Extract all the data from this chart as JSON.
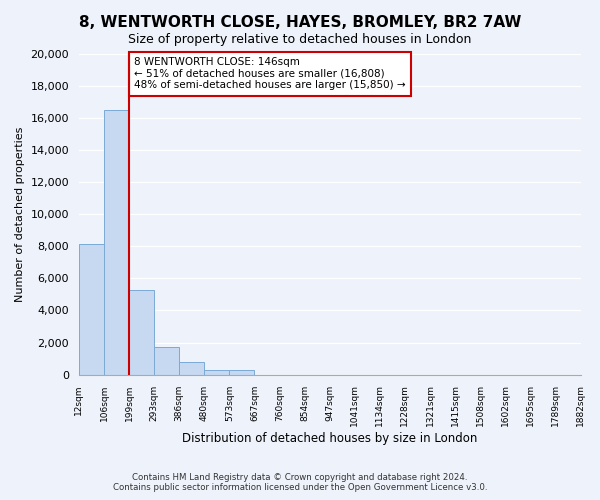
{
  "title": "8, WENTWORTH CLOSE, HAYES, BROMLEY, BR2 7AW",
  "subtitle": "Size of property relative to detached houses in London",
  "xlabel": "Distribution of detached houses by size in London",
  "ylabel": "Number of detached properties",
  "bar_values": [
    8150,
    16500,
    5300,
    1750,
    800,
    300,
    280,
    0,
    0,
    0,
    0,
    0,
    0,
    0,
    0,
    0,
    0,
    0,
    0,
    0
  ],
  "categories": [
    "12sqm",
    "106sqm",
    "199sqm",
    "293sqm",
    "386sqm",
    "480sqm",
    "573sqm",
    "667sqm",
    "760sqm",
    "854sqm",
    "947sqm",
    "1041sqm",
    "1134sqm",
    "1228sqm",
    "1321sqm",
    "1415sqm",
    "1508sqm",
    "1602sqm",
    "1695sqm",
    "1789sqm"
  ],
  "bar_color": "#c6d9f1",
  "bar_edge_color": "#7baad4",
  "redline_x": 2.0,
  "ylim": [
    0,
    20000
  ],
  "yticks": [
    0,
    2000,
    4000,
    6000,
    8000,
    10000,
    12000,
    14000,
    16000,
    18000,
    20000
  ],
  "annotation_title": "8 WENTWORTH CLOSE: 146sqm",
  "annotation_line1": "← 51% of detached houses are smaller (16,808)",
  "annotation_line2": "48% of semi-detached houses are larger (15,850) →",
  "annotation_box_color": "#ffffff",
  "annotation_border_color": "#cc0000",
  "redline_color": "#cc0000",
  "footer1": "Contains HM Land Registry data © Crown copyright and database right 2024.",
  "footer2": "Contains public sector information licensed under the Open Government Licence v3.0.",
  "bg_color": "#eef2fa",
  "plot_bg_color": "#eef2fa",
  "grid_color": "#ffffff"
}
